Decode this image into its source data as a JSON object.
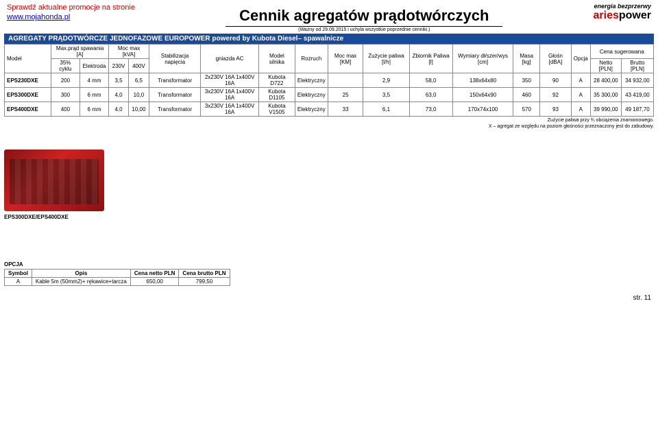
{
  "header": {
    "promo_line1": "Sprawdź aktualne promocje na stronie",
    "promo_link": "www.mojahonda.pl",
    "title": "Cennik agregatów prądotwórczych",
    "subtitle": "(Ważny od 29.09.2015 i uchyla wszystkie poprzednie cenniki.)",
    "logo_tag": "energia bezprzerwy",
    "logo_brand_a": "aries",
    "logo_brand_b": "power"
  },
  "section_title": "AGREGATY PRĄDOTWÓRCZE JEDNOFAZOWE EUROPOWER powered by Kubota Diesel– spawalnicze",
  "columns": {
    "model": "Model",
    "max_prad": "Max.prąd spawania [A]",
    "cycle": "35% cyklu",
    "elektroda": "Elektroda",
    "moc_max": "Moc max [kVA]",
    "v230": "230V",
    "v400": "400V",
    "stabil": "Stabilizacja napięcia",
    "gniazda": "gniazda AC",
    "model_sil": "Model silnika",
    "rozruch": "Rozruch",
    "moc_km": "Moc max [KM]",
    "zuzycie": "Zużycie paliwa [l/h]",
    "zbiornik": "Zbiornik Paliwa [l]",
    "wymiary": "Wymiary dł/szer/wys [cm]",
    "masa": "Masa [kg]",
    "glosn": "Głośn [dBA]",
    "opcja": "Opcja",
    "cena": "Cena sugerowana",
    "netto": "Netto [PLN]",
    "brutto": "Brutto [PLN]"
  },
  "rows": [
    {
      "model": "EPS230DXE",
      "cycle": "200",
      "elektroda": "4 mm",
      "v230": "3,5",
      "v400": "6,5",
      "stabil": "Transformator",
      "gniazda": "2x230V 16A 1x400V 16A",
      "silnik": "Kubota D722",
      "rozruch": "Elektryczny",
      "km": "",
      "zuzycie": "2,9",
      "zbiornik": "58,0",
      "wymiary": "138x64x80",
      "masa": "350",
      "glosn": "90",
      "opcja": "A",
      "netto": "28 400,00",
      "brutto": "34 932,00"
    },
    {
      "model": "EPS300DXE",
      "cycle": "300",
      "elektroda": "6 mm",
      "v230": "4,0",
      "v400": "10,0",
      "stabil": "Transformator",
      "gniazda": "3x230V 16A 1x400V 16A",
      "silnik": "Kubota D1105",
      "rozruch": "Elektryczny",
      "km": "25",
      "zuzycie": "3,5",
      "zbiornik": "63,0",
      "wymiary": "150x64x90",
      "masa": "460",
      "glosn": "92",
      "opcja": "A",
      "netto": "35 300,00",
      "brutto": "43 419,00"
    },
    {
      "model": "EPS400DXE",
      "cycle": "400",
      "elektroda": "6 mm",
      "v230": "4,0",
      "v400": "10,00",
      "stabil": "Transformator",
      "gniazda": "3x230V 16A 1x400V 16A",
      "silnik": "Kubota V1505",
      "rozruch": "Elektryczny",
      "km": "33",
      "zuzycie": "6,1",
      "zbiornik": "73,0",
      "wymiary": "170x74x100",
      "masa": "570",
      "glosn": "93",
      "opcja": "A",
      "netto": "39 990,00",
      "brutto": "49 187,70"
    }
  ],
  "footnotes": {
    "l1": "Zużycie paliwa przy ¾ obciążenia znamionowego.",
    "l2": "X – agregat ze względu na poziom głośności przeznaczony jest do zabudowy."
  },
  "product_label": "EPS300DXE/EPS400DXE",
  "opcja": {
    "title": "OPCJA",
    "h_symbol": "Symbol",
    "h_opis": "Opis",
    "h_netto": "Cena netto PLN",
    "h_brutto": "Cena brutto PLN",
    "r_symbol": "A",
    "r_opis": "Kable 5m (50mm2)+ rękawice+tarcza",
    "r_netto": "650,00",
    "r_brutto": "799,50"
  },
  "page": "str. 11"
}
